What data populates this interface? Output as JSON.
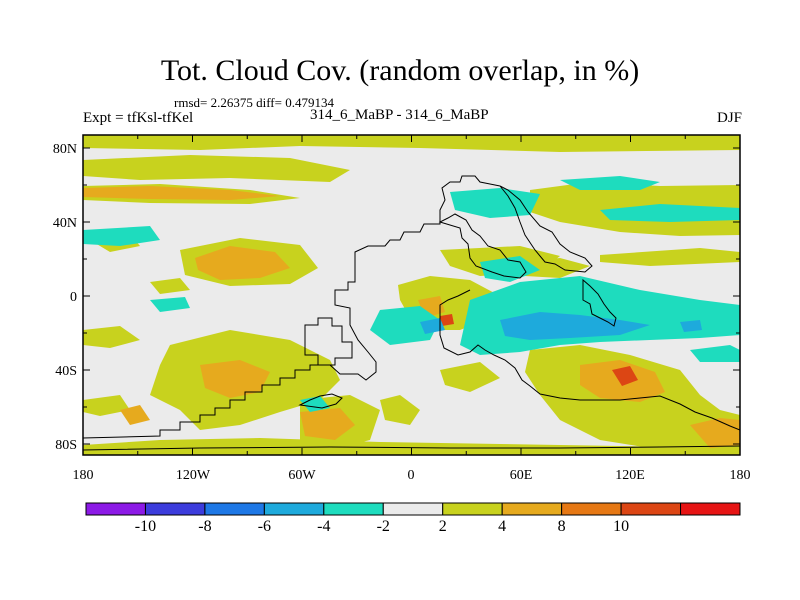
{
  "title": "Tot. Cloud Cov. (random overlap, in %)",
  "stats": "rmsd= 2.26375 diff= 0.479134",
  "experiment": "Expt = tfKsl-tfKel",
  "comparison": "314_6_MaBP - 314_6_MaBP",
  "season": "DJF",
  "x_axis_labels": [
    "180",
    "120W",
    "60W",
    "0",
    "60E",
    "120E",
    "180"
  ],
  "y_axis_labels": [
    "80N",
    "40N",
    "0",
    "40S",
    "80S"
  ],
  "colorbar": {
    "colors": [
      "#8c1ae6",
      "#3c3cdc",
      "#1e78e6",
      "#1eaadc",
      "#1edcbe",
      "#ebebeb",
      "#c8d21e",
      "#e6aa1e",
      "#e67814",
      "#dc4614",
      "#e61414"
    ],
    "labels": [
      "-10",
      "-8",
      "-6",
      "-4",
      "-2",
      "2",
      "4",
      "8",
      "10"
    ]
  }
}
